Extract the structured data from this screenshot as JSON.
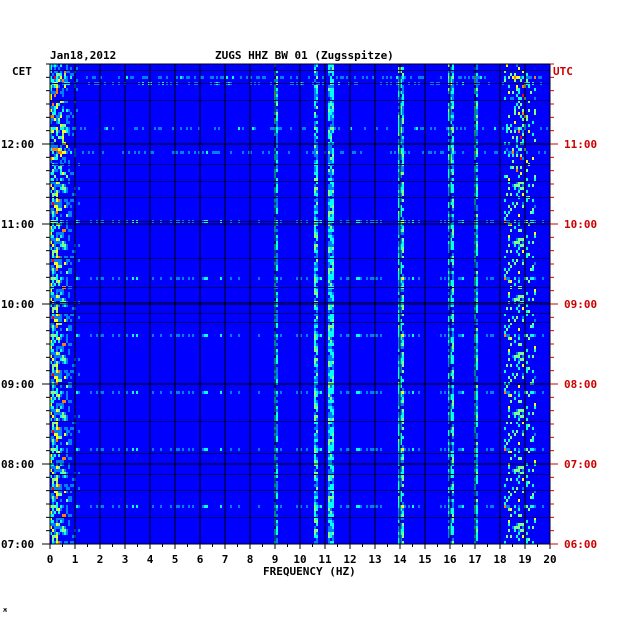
{
  "chart_data": {
    "type": "heatmap",
    "date": "Jan18,2012",
    "title": "ZUGS HHZ BW 01 (Zugsspitze)",
    "xlabel": "FREQUENCY (HZ)",
    "xlim": [
      0,
      20
    ],
    "x_ticks": [
      "0",
      "1",
      "2",
      "3",
      "4",
      "5",
      "6",
      "7",
      "8",
      "9",
      "10",
      "11",
      "12",
      "13",
      "14",
      "15",
      "16",
      "17",
      "18",
      "19",
      "20"
    ],
    "left_axis": {
      "label": "CET",
      "ticks": [
        "12:00",
        "11:00",
        "10:00",
        "09:00",
        "08:00",
        "07:00"
      ],
      "color": "#000000"
    },
    "right_axis": {
      "label": "UTC",
      "ticks": [
        "11:00",
        "10:00",
        "09:00",
        "08:00",
        "07:00",
        "06:00"
      ],
      "color": "#cc0000"
    },
    "colormap": [
      "#00007f",
      "#0000ff",
      "#0080ff",
      "#00ffff",
      "#80ff80",
      "#ffff00",
      "#ff8000",
      "#ff0000"
    ],
    "persistent_lines_hz": [
      9.0,
      10.6,
      11.2,
      14.0,
      16.0,
      17.0
    ],
    "hotspot_bands_hz": [
      0.3,
      18.5,
      19.0
    ]
  },
  "corner_mark": "ж"
}
